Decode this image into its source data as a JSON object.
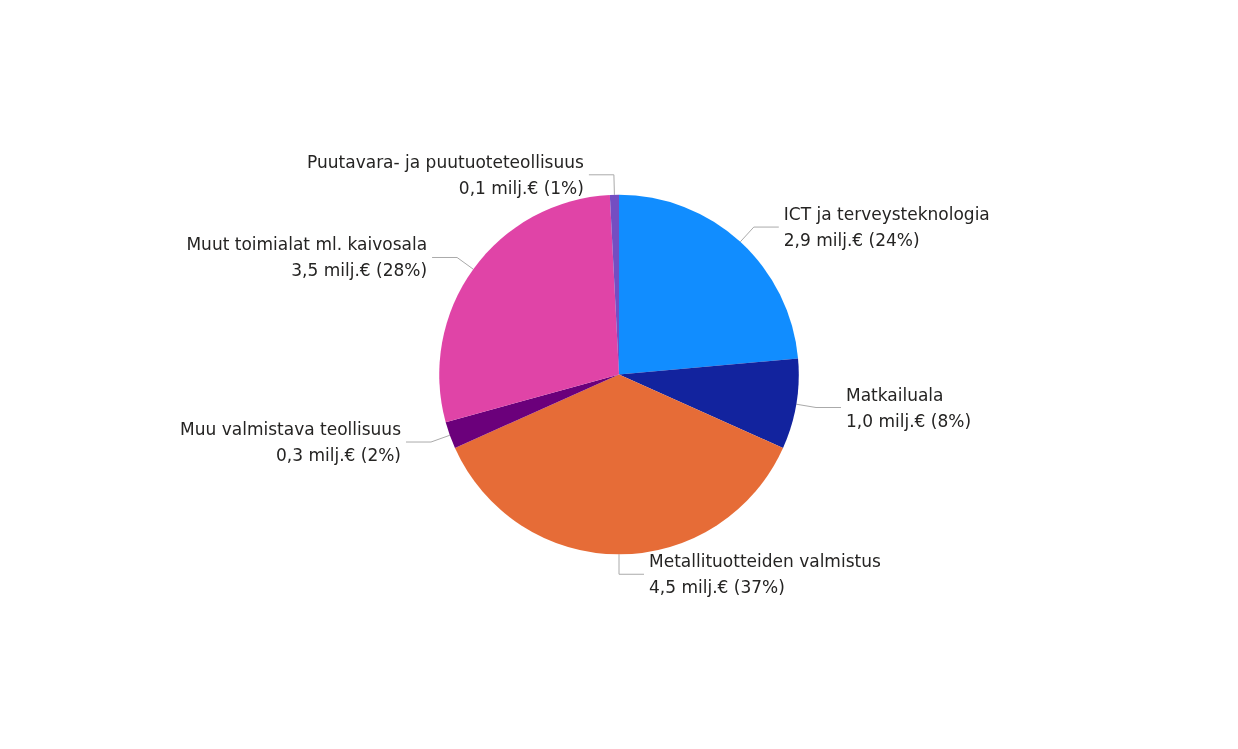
{
  "chart_data": {
    "type": "pie",
    "categories": [
      "ICT ja terveysteknologia",
      "Matkailuala",
      "Metallituotteiden valmistus",
      "Muu valmistava teollisuus",
      "Muut toimialat ml. kaivosala",
      "Puutavara- ja puutuoteteollisuus"
    ],
    "values": [
      2.9,
      1.0,
      4.5,
      0.3,
      3.5,
      0.1
    ],
    "value_labels": [
      "2,9 milj.€ (24%)",
      "1,0 milj.€ (8%)",
      "4,5 milj.€ (37%)",
      "0,3 milj.€ (2%)",
      "3,5 milj.€ (28%)",
      "0,1 milj.€ (1%)"
    ],
    "colors": [
      "#118dff",
      "#12239e",
      "#e66c37",
      "#6b007b",
      "#e044a7",
      "#744ec2"
    ],
    "legend": false
  }
}
